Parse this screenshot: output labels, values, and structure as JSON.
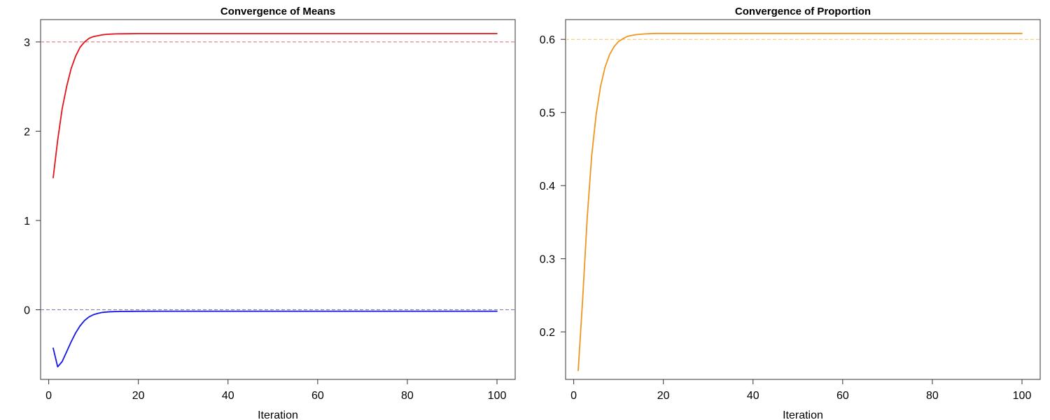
{
  "chart_data": [
    {
      "type": "line",
      "title": "Convergence of Means",
      "xlabel": "Iteration",
      "ylabel": "",
      "xlim": [
        1,
        100
      ],
      "ylim": [
        -0.78,
        3.25
      ],
      "xticks": [
        0,
        20,
        40,
        60,
        80,
        100
      ],
      "yticks": [
        0,
        1,
        2,
        3
      ],
      "grid": false,
      "series": [
        {
          "color": "#e3121b",
          "x": [
            1,
            2,
            3,
            4,
            5,
            6,
            7,
            8,
            9,
            10,
            11,
            12,
            13,
            14,
            15,
            16,
            18,
            20,
            25,
            30,
            40,
            50,
            60,
            70,
            80,
            90,
            100
          ],
          "values": [
            1.48,
            1.9,
            2.25,
            2.5,
            2.7,
            2.84,
            2.94,
            3.0,
            3.04,
            3.06,
            3.07,
            3.08,
            3.085,
            3.088,
            3.09,
            3.091,
            3.092,
            3.093,
            3.093,
            3.093,
            3.093,
            3.093,
            3.093,
            3.093,
            3.093,
            3.093,
            3.093
          ]
        },
        {
          "color": "#1515e8",
          "x": [
            1,
            2,
            3,
            4,
            5,
            6,
            7,
            8,
            9,
            10,
            11,
            12,
            13,
            14,
            15,
            16,
            18,
            20,
            25,
            30,
            40,
            50,
            60,
            70,
            80,
            90,
            100
          ],
          "values": [
            -0.43,
            -0.64,
            -0.58,
            -0.47,
            -0.36,
            -0.26,
            -0.18,
            -0.12,
            -0.08,
            -0.055,
            -0.04,
            -0.03,
            -0.025,
            -0.022,
            -0.02,
            -0.019,
            -0.018,
            -0.017,
            -0.016,
            -0.016,
            -0.016,
            -0.016,
            -0.016,
            -0.016,
            -0.016,
            -0.016,
            -0.016
          ]
        }
      ],
      "reference_lines": [
        {
          "y": 3,
          "color": "#d8707a"
        },
        {
          "y": 0,
          "color": "#7a7ab8"
        }
      ]
    },
    {
      "type": "line",
      "title": "Convergence of Proportion",
      "xlabel": "Iteration",
      "ylabel": "",
      "xlim": [
        1,
        100
      ],
      "ylim": [
        0.135,
        0.627
      ],
      "xticks": [
        0,
        20,
        40,
        60,
        80,
        100
      ],
      "yticks": [
        0.2,
        0.3,
        0.4,
        0.5,
        0.6
      ],
      "ytick_labels": [
        "0.2",
        "0.3",
        "0.4",
        "0.5",
        "0.6"
      ],
      "grid": false,
      "series": [
        {
          "color": "#f0961e",
          "x": [
            1,
            2,
            3,
            4,
            5,
            6,
            7,
            8,
            9,
            10,
            11,
            12,
            13,
            14,
            15,
            16,
            18,
            20,
            25,
            30,
            40,
            50,
            60,
            70,
            80,
            90,
            100
          ],
          "values": [
            0.147,
            0.245,
            0.355,
            0.44,
            0.497,
            0.536,
            0.562,
            0.579,
            0.59,
            0.597,
            0.601,
            0.604,
            0.6055,
            0.6065,
            0.607,
            0.6075,
            0.608,
            0.608,
            0.608,
            0.608,
            0.608,
            0.608,
            0.608,
            0.608,
            0.608,
            0.608,
            0.608
          ]
        }
      ],
      "reference_lines": [
        {
          "y": 0.6,
          "color": "#f5c060"
        }
      ]
    }
  ]
}
